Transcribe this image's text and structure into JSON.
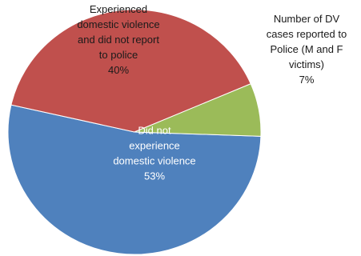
{
  "chart_data": {
    "type": "pie",
    "title": "",
    "slices": [
      {
        "label_lines": [
          "Did not",
          "experience",
          "domestic violence",
          "53%"
        ],
        "value": 53,
        "color": "#4f81bd"
      },
      {
        "label_lines": [
          "Experienced",
          "domestic violence",
          "and did not report",
          "to police",
          "40%"
        ],
        "value": 40,
        "color": "#c0504d"
      },
      {
        "label_lines": [
          "Number of DV",
          "cases reported to",
          "Police (M and F",
          "victims)",
          "7%"
        ],
        "value": 7,
        "color": "#9bbb59"
      }
    ],
    "legend": "none"
  }
}
